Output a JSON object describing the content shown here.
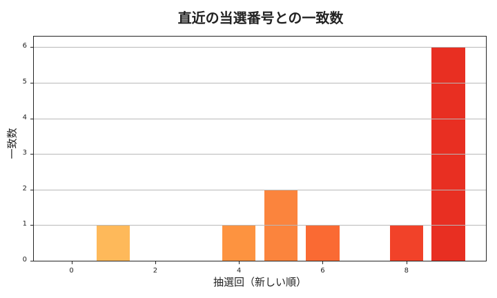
{
  "chart_data": {
    "type": "bar",
    "title": "直近の当選番号との一致数",
    "xlabel": "抽選回（新しい順）",
    "ylabel": "一致数",
    "x": [
      0,
      1,
      2,
      3,
      4,
      5,
      6,
      7,
      8,
      9
    ],
    "values": [
      0,
      1,
      0,
      0,
      1,
      2,
      1,
      0,
      1,
      6
    ],
    "colors": [
      "#ffd166",
      "#feb95a",
      "#feaa4e",
      "#fd9a45",
      "#fd9340",
      "#fb843d",
      "#fa6a33",
      "#f65a2d",
      "#f14229",
      "#e82f22"
    ],
    "xticks": [
      "0",
      "2",
      "4",
      "6",
      "8"
    ],
    "yticks": [
      "0",
      "1",
      "2",
      "3",
      "4",
      "5",
      "6"
    ],
    "xlim": [
      -0.9,
      9.9
    ],
    "ylim": [
      0,
      6.3
    ],
    "grid": "y",
    "legend": null
  }
}
